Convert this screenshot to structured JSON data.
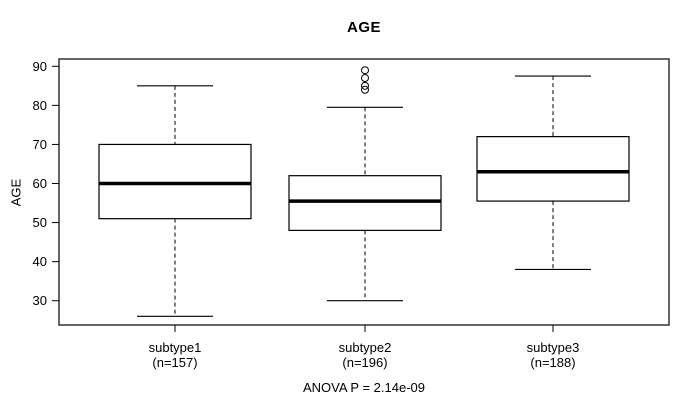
{
  "chart_data": {
    "type": "boxplot",
    "title": "AGE",
    "ylabel": "AGE",
    "xlabel": "",
    "annotation": "ANOVA P = 2.14e-09",
    "y_ticks": [
      30,
      40,
      50,
      60,
      70,
      80,
      90
    ],
    "ylim": [
      30,
      90
    ],
    "grid": false,
    "categories": [
      "subtype1",
      "subtype2",
      "subtype3"
    ],
    "category_sublabels": [
      "(n=157)",
      "(n=196)",
      "(n=188)"
    ],
    "series": [
      {
        "name": "subtype1",
        "n": 157,
        "whisker_low": 26,
        "q1": 51,
        "median": 60,
        "q3": 70,
        "whisker_high": 85,
        "outliers": []
      },
      {
        "name": "subtype2",
        "n": 196,
        "whisker_low": 30,
        "q1": 48,
        "median": 55.5,
        "q3": 62,
        "whisker_high": 79.5,
        "outliers": [
          84,
          85,
          87,
          89
        ]
      },
      {
        "name": "subtype3",
        "n": 188,
        "whisker_low": 38,
        "q1": 55.5,
        "median": 63,
        "q3": 72,
        "whisker_high": 87.5,
        "outliers": []
      }
    ],
    "colors": {
      "line": "#000000",
      "box_fill": "#ffffff",
      "background": "#ffffff"
    }
  }
}
